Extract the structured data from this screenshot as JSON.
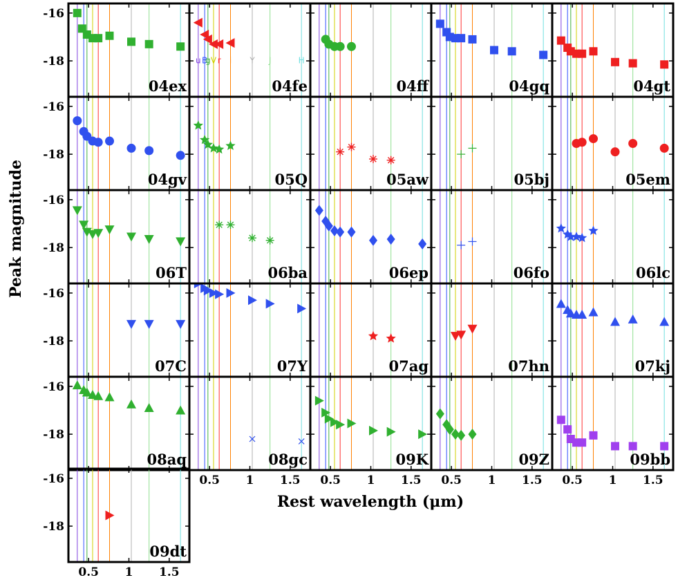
{
  "figure": {
    "ylabel": "Peak magnitude",
    "xlabel": "Rest wavelength (μm)",
    "xticks": [
      "0.5",
      "1",
      "1.5"
    ],
    "yticks": [
      "-16",
      "-18"
    ]
  },
  "chart_data": {
    "type": "scatter",
    "xlabel": "Rest wavelength (μm)",
    "ylabel": "Peak magnitude",
    "xlim": [
      0.25,
      1.75
    ],
    "ylim": [
      -15.6,
      -19.5
    ],
    "y_inverted": true,
    "grid": false,
    "filter_lines": [
      {
        "band": "u",
        "x": 0.36,
        "color": "#8040e0"
      },
      {
        "band": "B",
        "x": 0.44,
        "color": "#3050ff"
      },
      {
        "band": "g",
        "x": 0.48,
        "color": "#40b040"
      },
      {
        "band": "V",
        "x": 0.55,
        "color": "#d0d000"
      },
      {
        "band": "r",
        "x": 0.62,
        "color": "#ff3030"
      },
      {
        "band": "i",
        "x": 0.76,
        "color": "#ff8000"
      },
      {
        "band": "Y",
        "x": 1.03,
        "color": "#b0b0b0"
      },
      {
        "band": "J",
        "x": 1.25,
        "color": "#90e090"
      },
      {
        "band": "H",
        "x": 1.64,
        "color": "#70e0e0"
      }
    ],
    "panels": [
      {
        "name": "04ex",
        "marker": "square",
        "color": "#30b030",
        "x": [
          0.36,
          0.42,
          0.48,
          0.55,
          0.62,
          0.76,
          1.03,
          1.25,
          1.64
        ],
        "y": [
          -16.0,
          -16.65,
          -16.9,
          -17.05,
          -17.05,
          -16.95,
          -17.2,
          -17.3,
          -17.4
        ]
      },
      {
        "name": "04fe",
        "marker": "triangle-left",
        "color": "#ee2020",
        "x": [
          0.36,
          0.44,
          0.48,
          0.55,
          0.62,
          0.76
        ],
        "y": [
          -16.4,
          -16.9,
          -17.1,
          -17.3,
          -17.3,
          -17.25
        ],
        "band_labels": true
      },
      {
        "name": "04ff",
        "marker": "circle",
        "color": "#30b030",
        "x": [
          0.44,
          0.48,
          0.55,
          0.62,
          0.76
        ],
        "y": [
          -17.1,
          -17.3,
          -17.4,
          -17.4,
          -17.4
        ]
      },
      {
        "name": "04gq",
        "marker": "square",
        "color": "#3050ee",
        "x": [
          0.36,
          0.44,
          0.48,
          0.55,
          0.62,
          0.76,
          1.03,
          1.25,
          1.64
        ],
        "y": [
          -16.45,
          -16.8,
          -17.0,
          -17.05,
          -17.05,
          -17.1,
          -17.55,
          -17.6,
          -17.75
        ]
      },
      {
        "name": "04gt",
        "marker": "square",
        "color": "#ee2020",
        "x": [
          0.36,
          0.44,
          0.48,
          0.55,
          0.62,
          0.76,
          1.03,
          1.25,
          1.64
        ],
        "y": [
          -17.15,
          -17.45,
          -17.6,
          -17.7,
          -17.7,
          -17.6,
          -18.05,
          -18.1,
          -18.15
        ]
      },
      {
        "name": "04gv",
        "marker": "circle",
        "color": "#3050ee",
        "x": [
          0.36,
          0.44,
          0.48,
          0.55,
          0.62,
          0.76,
          1.03,
          1.25,
          1.64
        ],
        "y": [
          -16.6,
          -17.05,
          -17.25,
          -17.45,
          -17.5,
          -17.45,
          -17.75,
          -17.85,
          -18.05
        ]
      },
      {
        "name": "05Q",
        "marker": "star",
        "color": "#30b030",
        "x": [
          0.36,
          0.44,
          0.48,
          0.55,
          0.62,
          0.76
        ],
        "y": [
          -16.8,
          -17.4,
          -17.6,
          -17.75,
          -17.8,
          -17.65
        ]
      },
      {
        "name": "05aw",
        "marker": "asterisk",
        "color": "#ee2020",
        "x": [
          0.62,
          0.76,
          1.03,
          1.25
        ],
        "y": [
          -17.9,
          -17.7,
          -18.2,
          -18.25
        ]
      },
      {
        "name": "05bj",
        "marker": "plus",
        "color": "#30b030",
        "x": [
          0.62,
          0.76
        ],
        "y": [
          -18.0,
          -17.75
        ]
      },
      {
        "name": "05em",
        "marker": "circle",
        "color": "#ee2020",
        "x": [
          0.55,
          0.62,
          0.76,
          1.03,
          1.25,
          1.64
        ],
        "y": [
          -17.55,
          -17.5,
          -17.35,
          -17.9,
          -17.55,
          -17.75
        ]
      },
      {
        "name": "06T",
        "marker": "triangle-down",
        "color": "#30b030",
        "x": [
          0.36,
          0.44,
          0.48,
          0.55,
          0.62,
          0.76,
          1.03,
          1.25,
          1.64
        ],
        "y": [
          -16.45,
          -17.05,
          -17.35,
          -17.45,
          -17.4,
          -17.25,
          -17.55,
          -17.65,
          -17.75
        ]
      },
      {
        "name": "06ba",
        "marker": "asterisk",
        "color": "#30b030",
        "x": [
          0.62,
          0.76,
          1.03,
          1.25
        ],
        "y": [
          -17.05,
          -17.05,
          -17.6,
          -17.7
        ]
      },
      {
        "name": "06ep",
        "marker": "diamond",
        "color": "#3050ee",
        "x": [
          0.36,
          0.44,
          0.48,
          0.55,
          0.62,
          0.76,
          1.03,
          1.25,
          1.64
        ],
        "y": [
          -16.45,
          -16.9,
          -17.1,
          -17.3,
          -17.35,
          -17.35,
          -17.7,
          -17.65,
          -17.85
        ]
      },
      {
        "name": "06fo",
        "marker": "plus",
        "color": "#3050ee",
        "x": [
          0.62,
          0.76
        ],
        "y": [
          -17.9,
          -17.75
        ]
      },
      {
        "name": "06lc",
        "marker": "star",
        "color": "#3050ee",
        "x": [
          0.36,
          0.44,
          0.48,
          0.55,
          0.62,
          0.76
        ],
        "y": [
          -17.2,
          -17.45,
          -17.55,
          -17.55,
          -17.6,
          -17.3
        ]
      },
      {
        "name": "07C",
        "marker": "triangle-down",
        "color": "#3050ee",
        "x": [
          1.03,
          1.25,
          1.64
        ],
        "y": [
          -17.3,
          -17.3,
          -17.3
        ]
      },
      {
        "name": "07Y",
        "marker": "triangle-right",
        "color": "#3050ee",
        "x": [
          0.36,
          0.44,
          0.48,
          0.55,
          0.62,
          0.76,
          1.03,
          1.25,
          1.64
        ],
        "y": [
          -15.6,
          -15.8,
          -15.9,
          -16.0,
          -16.05,
          -16.0,
          -16.3,
          -16.45,
          -16.65
        ]
      },
      {
        "name": "07ag",
        "marker": "star",
        "color": "#ee2020",
        "x": [
          1.03,
          1.25
        ],
        "y": [
          -17.8,
          -17.9
        ]
      },
      {
        "name": "07hn",
        "marker": "triangle-down",
        "color": "#ee2020",
        "x": [
          0.55,
          0.62,
          0.76
        ],
        "y": [
          -17.8,
          -17.75,
          -17.5
        ]
      },
      {
        "name": "07kj",
        "marker": "triangle-up",
        "color": "#3050ee",
        "x": [
          0.36,
          0.44,
          0.48,
          0.55,
          0.62,
          0.76,
          1.03,
          1.25,
          1.64
        ],
        "y": [
          -16.45,
          -16.7,
          -16.85,
          -16.9,
          -16.9,
          -16.8,
          -17.2,
          -17.1,
          -17.2
        ]
      },
      {
        "name": "08aq",
        "marker": "triangle-up",
        "color": "#30b030",
        "x": [
          0.36,
          0.44,
          0.48,
          0.55,
          0.62,
          0.76,
          1.03,
          1.25,
          1.64
        ],
        "y": [
          -15.95,
          -16.15,
          -16.25,
          -16.35,
          -16.4,
          -16.45,
          -16.75,
          -16.9,
          -17.0
        ]
      },
      {
        "name": "08gc",
        "marker": "x",
        "color": "#3050ee",
        "x": [
          1.03,
          1.64
        ],
        "y": [
          -18.2,
          -18.3
        ]
      },
      {
        "name": "09K",
        "marker": "triangle-right",
        "color": "#30b030",
        "x": [
          0.36,
          0.44,
          0.48,
          0.55,
          0.62,
          0.76,
          1.03,
          1.25,
          1.64
        ],
        "y": [
          -16.6,
          -17.1,
          -17.35,
          -17.5,
          -17.6,
          -17.55,
          -17.85,
          -17.9,
          -18.0
        ]
      },
      {
        "name": "09Z",
        "marker": "diamond",
        "color": "#30b030",
        "x": [
          0.36,
          0.44,
          0.48,
          0.55,
          0.62,
          0.76
        ],
        "y": [
          -17.15,
          -17.6,
          -17.8,
          -18.0,
          -18.05,
          -18.0
        ]
      },
      {
        "name": "09bb",
        "marker": "square",
        "color": "#a040ee",
        "x": [
          0.36,
          0.44,
          0.48,
          0.55,
          0.62,
          0.76,
          1.03,
          1.25,
          1.64
        ],
        "y": [
          -17.4,
          -17.8,
          -18.2,
          -18.35,
          -18.35,
          -18.05,
          -18.5,
          -18.5,
          -18.5
        ]
      },
      {
        "name": "09dt",
        "marker": "triangle-right",
        "color": "#ee2020",
        "x": [
          0.76
        ],
        "y": [
          -17.55
        ]
      }
    ]
  }
}
